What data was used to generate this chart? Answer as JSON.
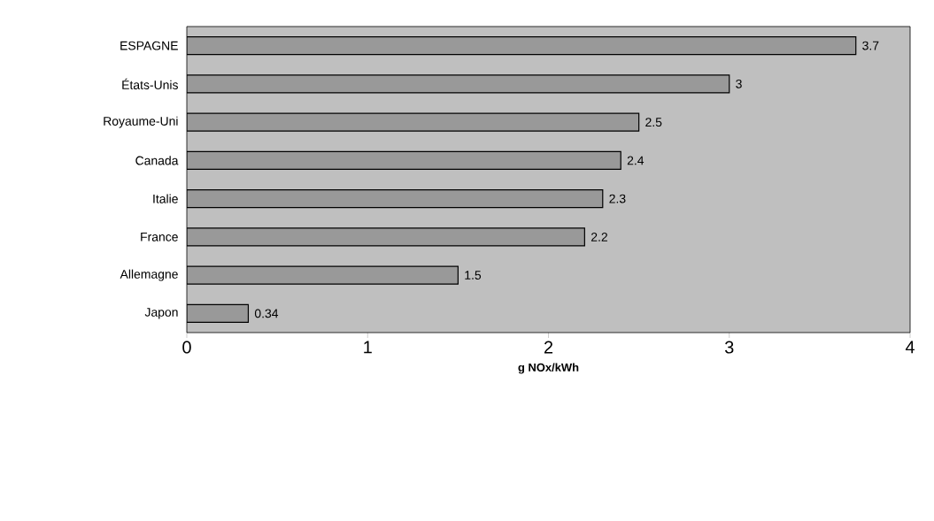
{
  "chart_data": {
    "type": "bar",
    "orientation": "horizontal",
    "categories": [
      "ESPAGNE",
      "États-Unis",
      "Royaume-Uni",
      "Canada",
      "Italie",
      "France",
      "Allemagne",
      "Japon"
    ],
    "values": [
      3.7,
      3,
      2.5,
      2.4,
      2.3,
      2.2,
      1.5,
      0.34
    ],
    "color": "#999999",
    "xlim": [
      0,
      4
    ],
    "xticks": [
      0,
      1,
      2,
      3,
      4
    ],
    "xlabel": "g NOx/kWh",
    "data_labels": true,
    "grid": false
  }
}
